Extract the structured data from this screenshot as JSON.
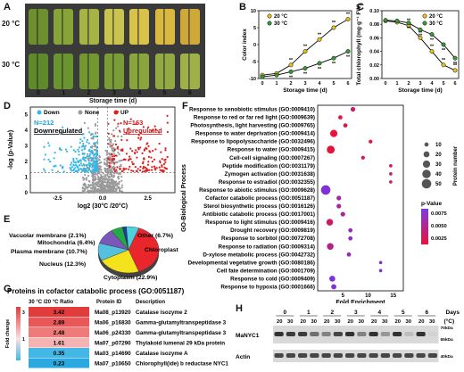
{
  "panels": {
    "A": "A",
    "B": "B",
    "C": "C",
    "D": "D",
    "E": "E",
    "F": "F",
    "G": "G",
    "H": "H"
  },
  "panelA": {
    "rows": [
      "20 °C",
      "30 °C"
    ],
    "days": [
      "0",
      "1",
      "2",
      "3",
      "4",
      "5",
      "6"
    ],
    "xlabel": "Storage time (d)",
    "colors20": [
      "#6e8f2e",
      "#86a438",
      "#a5b445",
      "#c9c34f",
      "#d9c24a",
      "#d8b83e",
      "#cfa83a"
    ],
    "colors30": [
      "#5e8a2a",
      "#6a9430",
      "#72982f",
      "#7b9d36",
      "#88a63c",
      "#93aa42",
      "#a0b048"
    ]
  },
  "chart_data": [
    {
      "id": "B",
      "type": "line",
      "ylabel": "Color index",
      "xlabel": "Storage time (d)",
      "x": [
        0,
        1,
        2,
        3,
        4,
        5,
        6
      ],
      "ylim": [
        -10,
        10
      ],
      "yticks": [
        -10,
        -5,
        0,
        5,
        10
      ],
      "series": [
        {
          "name": "20 °C",
          "color": "#e6c21a",
          "values": [
            -9,
            -8.5,
            -6,
            -2,
            1.5,
            5,
            7.5
          ]
        },
        {
          "name": "30 °C",
          "color": "#3a9a3a",
          "values": [
            -9.5,
            -9,
            -8,
            -7,
            -5.5,
            -4,
            -2
          ]
        }
      ],
      "significance": "**"
    },
    {
      "id": "C",
      "type": "line",
      "ylabel": "Total chlorophyll (mg·g⁻¹ FW)",
      "xlabel": "Storage time (d)",
      "x": [
        0,
        1,
        2,
        3,
        4,
        5,
        6
      ],
      "ylim": [
        0,
        0.1
      ],
      "yticks": [
        "0.00",
        "0.02",
        "0.04",
        "0.06",
        "0.08",
        "0.10"
      ],
      "series": [
        {
          "name": "20 °C",
          "color": "#e6c21a",
          "values": [
            0.085,
            0.083,
            0.078,
            0.06,
            0.04,
            0.02,
            0.012
          ]
        },
        {
          "name": "30 °C",
          "color": "#3a9a3a",
          "values": [
            0.086,
            0.085,
            0.082,
            0.072,
            0.065,
            0.05,
            0.03
          ]
        }
      ],
      "significance": "**"
    },
    {
      "id": "D",
      "type": "scatter",
      "xlabel": "log2 (30°C /20°C)",
      "ylabel": "-log (p-Value)",
      "xticks": [
        "-2.5",
        "0.0",
        "2.5"
      ],
      "yticks": [
        "0",
        "1",
        "2",
        "3",
        "4",
        "5"
      ],
      "legend": [
        "Down",
        "None",
        "UP"
      ],
      "legend_colors": [
        "#35b7e8",
        "#999999",
        "#e02020"
      ],
      "down_label": "N=212",
      "down_text": "Downregulated",
      "up_label": "N=163",
      "up_text": "Upregulated"
    },
    {
      "id": "E",
      "type": "pie",
      "slices": [
        {
          "label": "Chloroplast (38.9%)",
          "value": 38.9,
          "color": "#e8262b"
        },
        {
          "label": "Cytoplasm (22.9%)",
          "value": 22.9,
          "color": "#f4e31c"
        },
        {
          "label": "Nucleus (12.3%)",
          "value": 12.3,
          "color": "#54c1e0"
        },
        {
          "label": "Plasma membrane (10.7%)",
          "value": 10.7,
          "color": "#7a58b8"
        },
        {
          "label": "Mitochondria (6.4%)",
          "value": 6.4,
          "color": "#22aa44"
        },
        {
          "label": "Vacuolar membrane (2.1%)",
          "value": 2.1,
          "color": "#1b3c9a"
        },
        {
          "label": "Other (6.7%)",
          "value": 6.7,
          "color": "#4dd3e0"
        }
      ]
    },
    {
      "id": "F",
      "type": "scatter",
      "xlabel": "Fold Enrichment",
      "ylabel": "GO-Biological Process",
      "xticks": [
        5,
        10,
        15
      ],
      "legend_size_title": "Protein number",
      "size_legend": [
        10,
        20,
        30,
        40,
        50
      ],
      "legend_color_title": "p-Value",
      "color_legend": [
        "0.0075",
        "0.0050",
        "0.0025"
      ],
      "terms": [
        {
          "label": "Response to xenobiotic stimulus (GO:0009410)",
          "x": 7,
          "n": 12,
          "p": 0.004
        },
        {
          "label": "Response to red or far red light (GO:0009639)",
          "x": 4.5,
          "n": 10,
          "p": 0.0025
        },
        {
          "label": "Photosynthesis, light harvesting (GO:0009765)",
          "x": 5.5,
          "n": 10,
          "p": 0.003
        },
        {
          "label": "Response to water deprivation (GO:0009414)",
          "x": 3.2,
          "n": 30,
          "p": 0.002
        },
        {
          "label": "Response to lipopolysaccharide (GO:0032496)",
          "x": 10.5,
          "n": 8,
          "p": 0.0025
        },
        {
          "label": "Response to water (GO:0009415)",
          "x": 2.6,
          "n": 35,
          "p": 0.001
        },
        {
          "label": "Cell-cell signaling (GO:0007267)",
          "x": 9,
          "n": 8,
          "p": 0.003
        },
        {
          "label": "Peptide modification (GO:0031179)",
          "x": 14.5,
          "n": 6,
          "p": 0.003
        },
        {
          "label": "Zymogen activation (GO:0031638)",
          "x": 14.5,
          "n": 6,
          "p": 0.004
        },
        {
          "label": "Response to estradiol (GO:0032355)",
          "x": 14.5,
          "n": 6,
          "p": 0.004
        },
        {
          "label": "Response to abiotic stimulus (GO:0009628)",
          "x": 1.6,
          "n": 50,
          "p": 0.008
        },
        {
          "label": "Cofactor catabolic process (GO:0051187)",
          "x": 4.2,
          "n": 12,
          "p": 0.006
        },
        {
          "label": "Sterol biosynthetic process (GO:0016126)",
          "x": 4.2,
          "n": 12,
          "p": 0.006
        },
        {
          "label": "Antibiotic catabolic process (GO:0017001)",
          "x": 5,
          "n": 12,
          "p": 0.006
        },
        {
          "label": "Response to light stimulus (GO:0009416)",
          "x": 2.4,
          "n": 25,
          "p": 0.004
        },
        {
          "label": "Drought recovery (GO:0009819)",
          "x": 6.5,
          "n": 10,
          "p": 0.007
        },
        {
          "label": "Response to sorbitol (GO:0072708)",
          "x": 6.5,
          "n": 10,
          "p": 0.007
        },
        {
          "label": "Response to radiation (GO:0009314)",
          "x": 2.5,
          "n": 25,
          "p": 0.005
        },
        {
          "label": "D-xylose metabolic process (GO:0042732)",
          "x": 6.2,
          "n": 10,
          "p": 0.007
        },
        {
          "label": "Developmental vegetative growth (GO:0080186)",
          "x": 12.5,
          "n": 6,
          "p": 0.008
        },
        {
          "label": "Cell fate determination (GO:0001709)",
          "x": 12.5,
          "n": 6,
          "p": 0.008
        },
        {
          "label": "Response to cold (GO:0009409)",
          "x": 2.9,
          "n": 20,
          "p": 0.008
        },
        {
          "label": "Response to hypoxia (GO:0001666)",
          "x": 3.2,
          "n": 15,
          "p": 0.008
        }
      ]
    },
    {
      "id": "G",
      "type": "table",
      "title": "Proteins in cofactor catabolic process (GO:0051187)",
      "columns": [
        "30 °C /20 °C Ratio",
        "Protein ID",
        "Description"
      ],
      "scale_label": "Fold change",
      "scale_ticks": [
        "3",
        "1"
      ],
      "rows": [
        {
          "ratio": "3.42",
          "id": "Ma08_p13920",
          "desc": "Catalase isozyme 2",
          "color": "#e23b3b"
        },
        {
          "ratio": "2.89",
          "id": "Ma06_p16830",
          "desc": "Gamma-glutamyltranspeptidase 3",
          "color": "#e85858"
        },
        {
          "ratio": "2.48",
          "id": "Ma06_p24330",
          "desc": "Gamma-glutamyltranspeptidase 3",
          "color": "#ee7a7a"
        },
        {
          "ratio": "1.61",
          "id": "Ma07_p07290",
          "desc": "Thylakoid lumenal 29 kDa protein",
          "color": "#f6b3b3"
        },
        {
          "ratio": "0.35",
          "id": "Ma03_p14690",
          "desc": "Catalase isozyme A",
          "color": "#43b8e6"
        },
        {
          "ratio": "0.23",
          "id": "Ma07_p10650",
          "desc": "Chlorophyll(ide) b reductase NYC1",
          "color": "#2aa8e0"
        }
      ]
    }
  ],
  "panelH": {
    "days_label": "Days",
    "temp_unit": "(°C)",
    "days": [
      "0",
      "1",
      "2",
      "3",
      "4",
      "5",
      "6"
    ],
    "temps": [
      "20",
      "30"
    ],
    "rows": [
      "MaNYC1",
      "Actin"
    ],
    "kda": [
      "55kDa",
      "70kDa",
      "40kDa"
    ],
    "band_intensity_nyc1": [
      0.9,
      0.85,
      0.85,
      0.6,
      0.5,
      0.8,
      0.9,
      0.5,
      0.9,
      0.4,
      0.9,
      0.2,
      0.9,
      0.1
    ],
    "band_intensity_actin": [
      0.8,
      0.8,
      0.8,
      0.8,
      0.8,
      0.8,
      0.8,
      0.8,
      0.8,
      0.8,
      0.8,
      0.8,
      0.8,
      0.8
    ]
  }
}
